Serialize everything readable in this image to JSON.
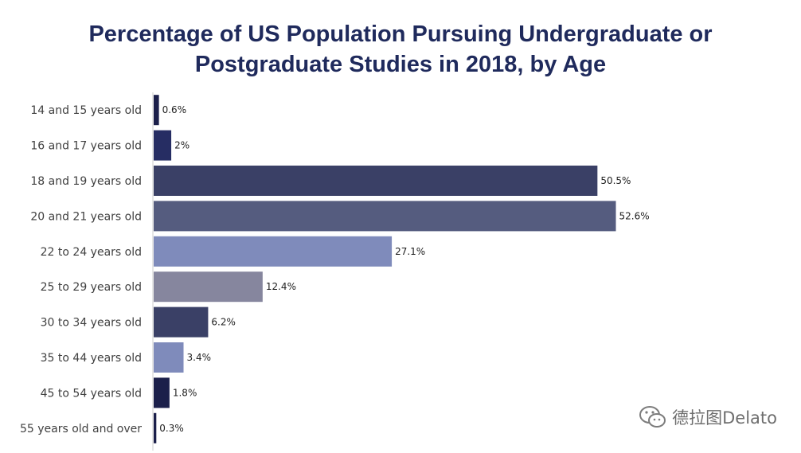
{
  "chart_data": {
    "type": "bar",
    "orientation": "horizontal",
    "title_lines": [
      "Percentage of US Population Pursuing Undergraduate or",
      "Postgraduate Studies in 2018, by Age"
    ],
    "categories": [
      "14 and 15 years old",
      "16 and 17 years old",
      "18 and 19 years old",
      "20 and 21 years old",
      "22 to 24 years old",
      "25 to 29 years old",
      "30 to 34 years old",
      "35 to 44 years old",
      "45 to 54 years old",
      "55 years old and over"
    ],
    "values": [
      0.6,
      2,
      50.5,
      52.6,
      27.1,
      12.4,
      6.2,
      3.4,
      1.8,
      0.3
    ],
    "value_labels": [
      "0.6%",
      "2%",
      "50.5%",
      "52.6%",
      "27.1%",
      "12.4%",
      "6.2%",
      "3.4%",
      "1.8%",
      "0.3%"
    ],
    "bar_colors": [
      "#1b1f4a",
      "#262d63",
      "#3a4066",
      "#555c7f",
      "#7f8bbb",
      "#86869e",
      "#3a4066",
      "#7f8bbb",
      "#1b1f4a",
      "#1b1f4a"
    ],
    "xlim": [
      0,
      55
    ],
    "grid": false,
    "legend": "none"
  },
  "watermark": {
    "icon": "wechat-icon",
    "text": "德拉图Delato"
  }
}
